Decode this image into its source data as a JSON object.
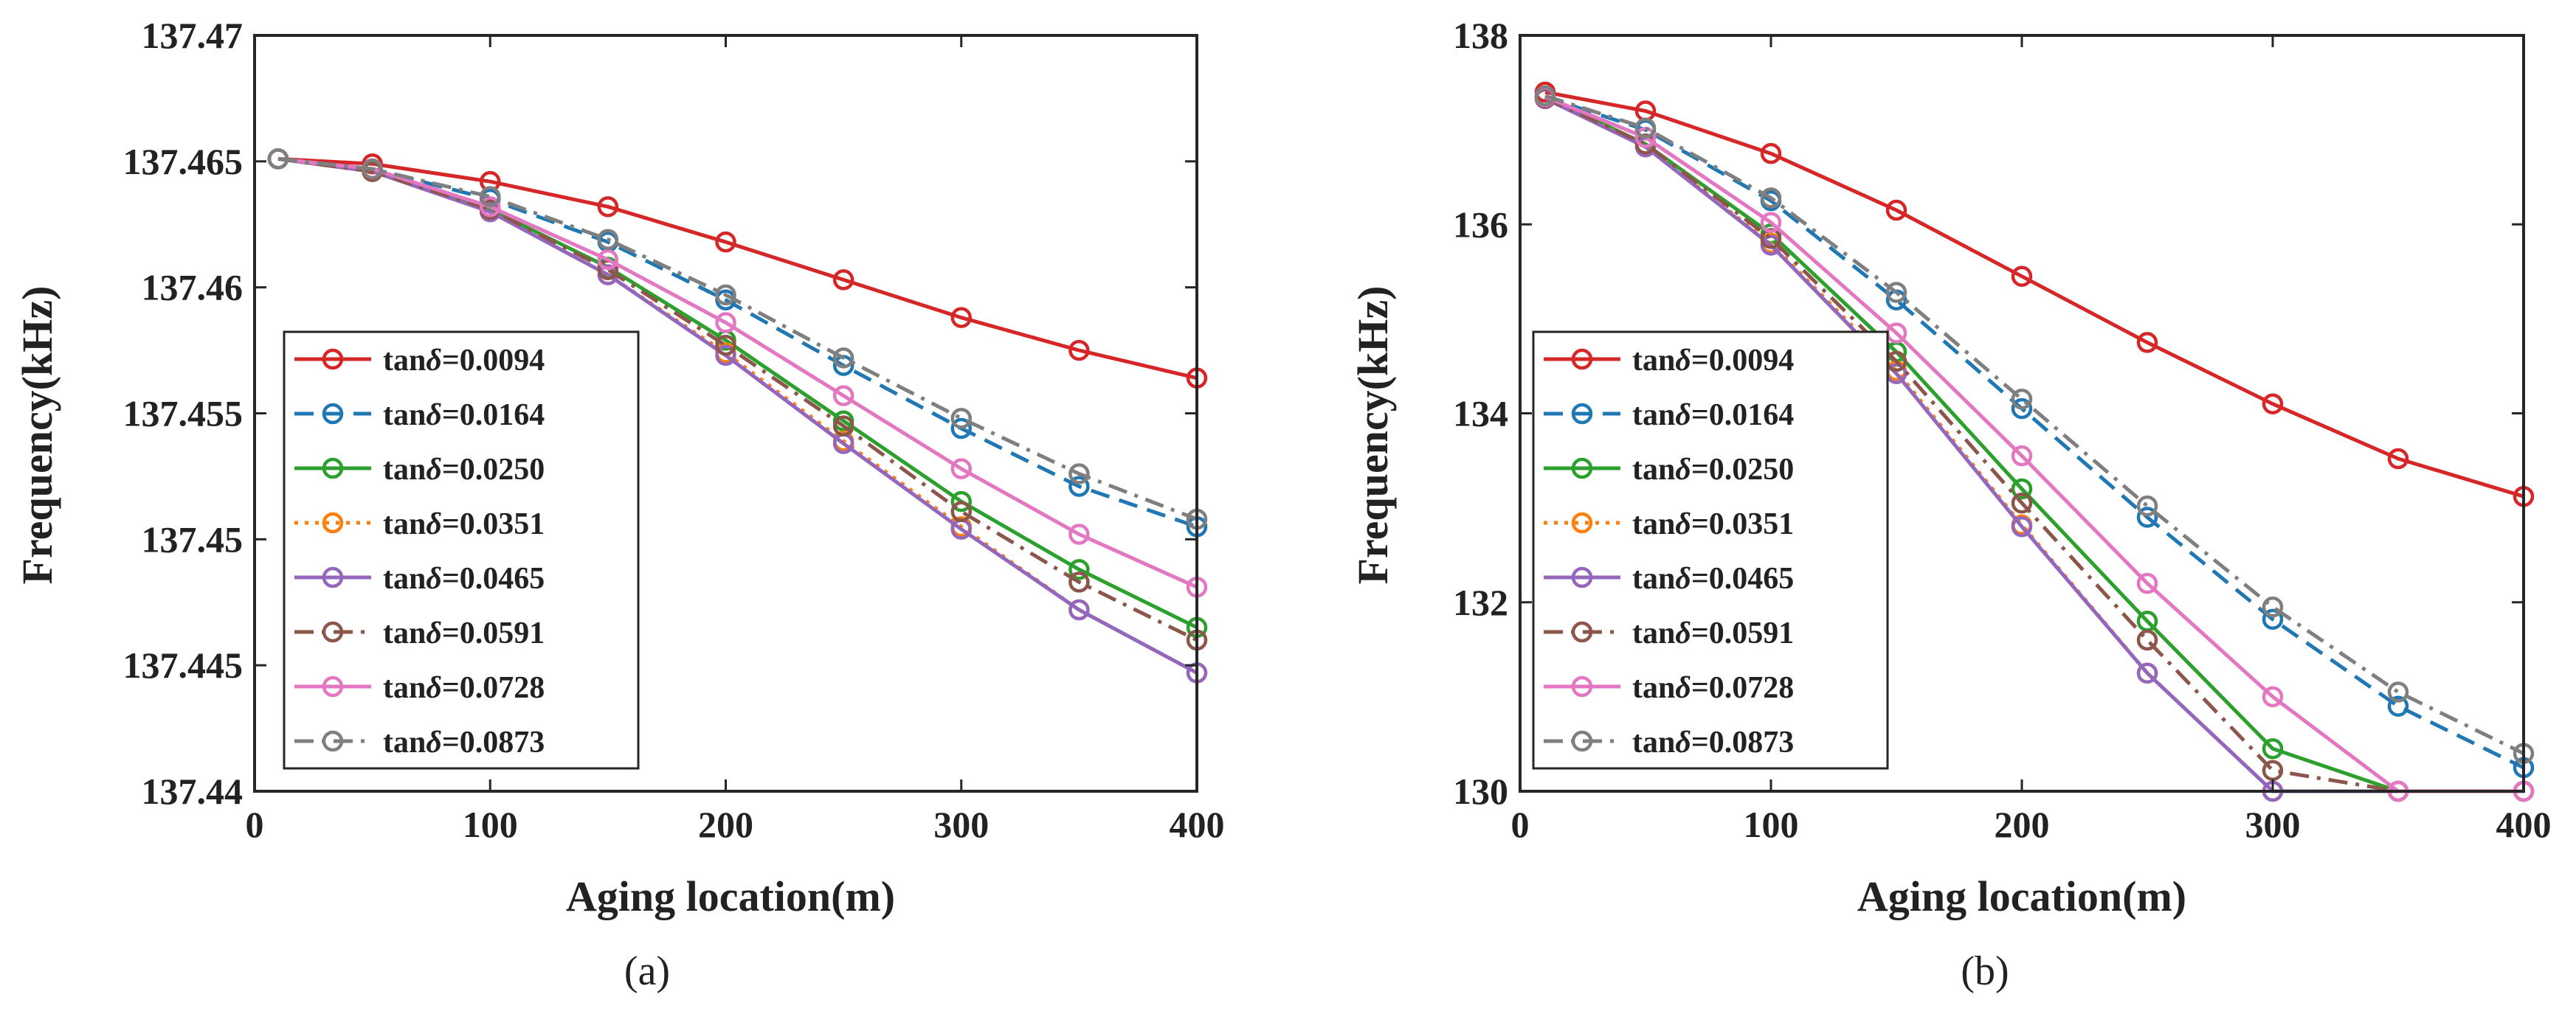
{
  "chart_data": [
    {
      "type": "line",
      "panel_label": "(a)",
      "xlabel": "Aging location(m)",
      "ylabel": "Frequency(kHz)",
      "xlim": [
        0,
        400
      ],
      "ylim": [
        137.44,
        137.47
      ],
      "xticks": [
        0,
        100,
        200,
        300,
        400
      ],
      "xtick_labels": [
        "0",
        "100",
        "200",
        "300",
        "400"
      ],
      "yticks": [
        137.44,
        137.445,
        137.45,
        137.455,
        137.46,
        137.465,
        137.47
      ],
      "ytick_labels": [
        "137.44",
        "137.445",
        "137.45",
        "137.455",
        "137.46",
        "137.465",
        "137.47"
      ],
      "legend_position": "bottom-left",
      "grid": false,
      "x": [
        10,
        50,
        100,
        150,
        200,
        250,
        300,
        350,
        400
      ],
      "series": [
        {
          "name": "tanδ=0.0094",
          "legend_prefix": "tan",
          "legend_suffix": "=0.0094",
          "color": "#D62728",
          "dash": "solid",
          "values": [
            137.4651,
            137.4649,
            137.4642,
            137.4632,
            137.4618,
            137.4603,
            137.4588,
            137.4575,
            137.4564
          ]
        },
        {
          "name": "tanδ=0.0164",
          "legend_prefix": "tan",
          "legend_suffix": "=0.0164",
          "color": "#1F77B4",
          "dash": "dashed",
          "values": [
            137.4651,
            137.4647,
            137.4635,
            137.4618,
            137.4595,
            137.4569,
            137.4544,
            137.4521,
            137.4505
          ]
        },
        {
          "name": "tanδ=0.0250",
          "legend_prefix": "tan",
          "legend_suffix": "=0.0250",
          "color": "#2CA02C",
          "dash": "solid",
          "values": [
            137.4651,
            137.4646,
            137.4631,
            137.4608,
            137.4579,
            137.4547,
            137.4515,
            137.4488,
            137.4465
          ]
        },
        {
          "name": "tanδ=0.0351",
          "legend_prefix": "tan",
          "legend_suffix": "=0.0351",
          "color": "#FF7F0E",
          "dash": "dotted",
          "values": [
            137.4651,
            137.4646,
            137.463,
            137.4605,
            137.4574,
            137.4539,
            137.4505,
            137.4472,
            137.4447
          ]
        },
        {
          "name": "tanδ=0.0465",
          "legend_prefix": "tan",
          "legend_suffix": "=0.0465",
          "color": "#9467BD",
          "dash": "solid",
          "values": [
            137.4651,
            137.4646,
            137.463,
            137.4605,
            137.4573,
            137.4538,
            137.4504,
            137.4472,
            137.4447
          ]
        },
        {
          "name": "tanδ=0.0591",
          "legend_prefix": "tan",
          "legend_suffix": "=0.0591",
          "color": "#8C564B",
          "dash": "dashdot",
          "values": [
            137.4651,
            137.4646,
            137.4631,
            137.4607,
            137.4577,
            137.4545,
            137.4511,
            137.4483,
            137.446
          ]
        },
        {
          "name": "tanδ=0.0728",
          "legend_prefix": "tan",
          "legend_suffix": "=0.0728",
          "color": "#E377C2",
          "dash": "solid",
          "values": [
            137.4651,
            137.4647,
            137.4632,
            137.4611,
            137.4586,
            137.4557,
            137.4528,
            137.4502,
            137.4481
          ]
        },
        {
          "name": "tanδ=0.0873",
          "legend_prefix": "tan",
          "legend_suffix": "=0.0873",
          "color": "#7F7F7F",
          "dash": "dashdot",
          "values": [
            137.4651,
            137.4647,
            137.4636,
            137.4619,
            137.4597,
            137.4572,
            137.4548,
            137.4526,
            137.4508
          ]
        }
      ]
    },
    {
      "type": "line",
      "panel_label": "(b)",
      "xlabel": "Aging location(m)",
      "ylabel": "Frequency(kHz)",
      "xlim": [
        0,
        400
      ],
      "ylim": [
        130,
        138
      ],
      "xticks": [
        0,
        100,
        200,
        300,
        400
      ],
      "xtick_labels": [
        "0",
        "100",
        "200",
        "300",
        "400"
      ],
      "yticks": [
        130,
        132,
        134,
        136,
        138
      ],
      "ytick_labels": [
        "130",
        "132",
        "134",
        "136",
        "138"
      ],
      "legend_position": "bottom-left",
      "grid": false,
      "x": [
        10,
        50,
        100,
        150,
        200,
        250,
        300,
        350,
        400
      ],
      "series": [
        {
          "name": "tanδ=0.0094",
          "legend_prefix": "tan",
          "legend_suffix": "=0.0094",
          "color": "#D62728",
          "dash": "solid",
          "values": [
            137.4,
            137.2,
            136.75,
            136.15,
            135.45,
            134.75,
            134.1,
            133.52,
            133.12
          ]
        },
        {
          "name": "tanδ=0.0164",
          "legend_prefix": "tan",
          "legend_suffix": "=0.0164",
          "color": "#1F77B4",
          "dash": "dashed",
          "values": [
            137.35,
            137.0,
            136.25,
            135.2,
            134.05,
            132.9,
            131.82,
            130.9,
            130.25
          ]
        },
        {
          "name": "tanδ=0.0250",
          "legend_prefix": "tan",
          "legend_suffix": "=0.0250",
          "color": "#2CA02C",
          "dash": "solid",
          "values": [
            137.35,
            136.85,
            135.9,
            134.65,
            133.2,
            131.8,
            130.45,
            130.0,
            130.0
          ]
        },
        {
          "name": "tanδ=0.0351",
          "legend_prefix": "tan",
          "legend_suffix": "=0.0351",
          "color": "#FF7F0E",
          "dash": "dotted",
          "values": [
            137.33,
            136.83,
            135.8,
            134.45,
            132.82,
            131.25,
            130.0,
            130.0,
            130.0
          ]
        },
        {
          "name": "tanδ=0.0465",
          "legend_prefix": "tan",
          "legend_suffix": "=0.0465",
          "color": "#9467BD",
          "dash": "solid",
          "values": [
            137.33,
            136.82,
            135.78,
            134.42,
            132.8,
            131.25,
            130.0,
            130.0,
            130.0
          ]
        },
        {
          "name": "tanδ=0.0591",
          "legend_prefix": "tan",
          "legend_suffix": "=0.0591",
          "color": "#8C564B",
          "dash": "dashdot",
          "values": [
            137.34,
            136.85,
            135.85,
            134.55,
            133.05,
            131.6,
            130.22,
            130.0,
            130.0
          ]
        },
        {
          "name": "tanδ=0.0728",
          "legend_prefix": "tan",
          "legend_suffix": "=0.0728",
          "color": "#E377C2",
          "dash": "solid",
          "values": [
            137.35,
            136.92,
            136.02,
            134.85,
            133.55,
            132.2,
            131.0,
            130.0,
            130.0
          ]
        },
        {
          "name": "tanδ=0.0873",
          "legend_prefix": "tan",
          "legend_suffix": "=0.0873",
          "color": "#7F7F7F",
          "dash": "dashdot",
          "values": [
            137.36,
            137.02,
            136.28,
            135.28,
            134.15,
            133.02,
            131.95,
            131.05,
            130.4
          ]
        }
      ]
    }
  ]
}
